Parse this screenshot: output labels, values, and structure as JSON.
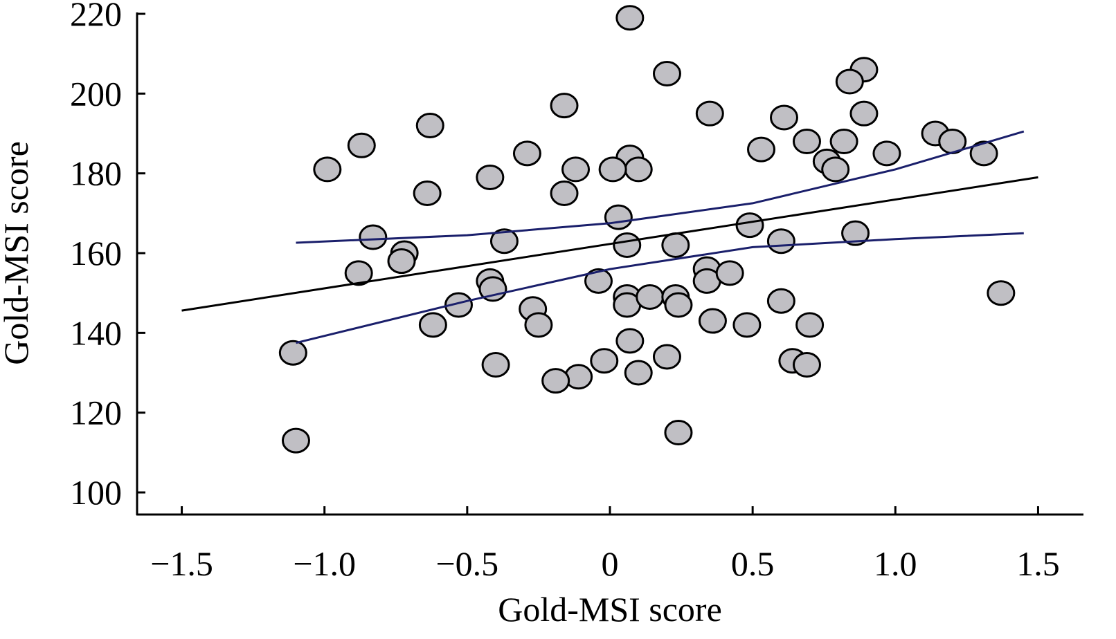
{
  "chart_data": {
    "type": "scatter",
    "title": "",
    "xlabel": "Gold-MSI score",
    "ylabel": "Gold-MSI score",
    "xlim": [
      -1.5,
      1.5
    ],
    "ylim": [
      100,
      220
    ],
    "xticks": [
      -1.5,
      -1.0,
      -0.5,
      0,
      0.5,
      1.0,
      1.5
    ],
    "xtick_labels": [
      "−1.5",
      "−1.0",
      "−0.5",
      "0",
      "0.5",
      "1.0",
      "1.5"
    ],
    "yticks": [
      100,
      120,
      140,
      160,
      180,
      200,
      220
    ],
    "ytick_labels": [
      "100",
      "120",
      "140",
      "160",
      "180",
      "200",
      "220"
    ],
    "grid": false,
    "colors": {
      "point_fill": "#c0bfc4",
      "point_stroke": "#000000",
      "fit": "#000000",
      "ci": "#1a1f6b"
    },
    "points": [
      [
        0.07,
        219
      ],
      [
        0.2,
        205
      ],
      [
        0.89,
        206
      ],
      [
        0.84,
        203
      ],
      [
        0.35,
        195
      ],
      [
        0.61,
        194
      ],
      [
        0.89,
        195
      ],
      [
        -0.16,
        197
      ],
      [
        -0.63,
        192
      ],
      [
        -0.87,
        187
      ],
      [
        -0.99,
        181
      ],
      [
        -0.29,
        185
      ],
      [
        0.53,
        186
      ],
      [
        0.69,
        188
      ],
      [
        0.82,
        188
      ],
      [
        0.97,
        185
      ],
      [
        1.14,
        190
      ],
      [
        1.2,
        188
      ],
      [
        1.31,
        185
      ],
      [
        0.07,
        184
      ],
      [
        0.1,
        181
      ],
      [
        -0.12,
        181
      ],
      [
        0.01,
        181
      ],
      [
        -0.42,
        179
      ],
      [
        -0.64,
        175
      ],
      [
        -0.16,
        175
      ],
      [
        0.76,
        183
      ],
      [
        0.79,
        181
      ],
      [
        -0.83,
        164
      ],
      [
        -0.88,
        155
      ],
      [
        -0.72,
        160
      ],
      [
        -0.73,
        158
      ],
      [
        -0.37,
        163
      ],
      [
        0.03,
        169
      ],
      [
        0.06,
        162
      ],
      [
        0.23,
        162
      ],
      [
        0.49,
        167
      ],
      [
        0.6,
        163
      ],
      [
        0.86,
        165
      ],
      [
        1.37,
        150
      ],
      [
        -0.42,
        153
      ],
      [
        -0.41,
        151
      ],
      [
        -0.53,
        147
      ],
      [
        -0.62,
        142
      ],
      [
        -0.27,
        146
      ],
      [
        -0.25,
        142
      ],
      [
        -0.04,
        153
      ],
      [
        0.06,
        149
      ],
      [
        0.06,
        147
      ],
      [
        0.14,
        149
      ],
      [
        0.23,
        149
      ],
      [
        0.24,
        147
      ],
      [
        0.34,
        156
      ],
      [
        0.34,
        153
      ],
      [
        0.42,
        155
      ],
      [
        0.36,
        143
      ],
      [
        0.48,
        142
      ],
      [
        0.6,
        148
      ],
      [
        0.7,
        142
      ],
      [
        0.07,
        138
      ],
      [
        -0.02,
        133
      ],
      [
        0.1,
        130
      ],
      [
        0.2,
        134
      ],
      [
        -0.11,
        129
      ],
      [
        -0.19,
        128
      ],
      [
        -0.4,
        132
      ],
      [
        0.64,
        133
      ],
      [
        0.69,
        132
      ],
      [
        -1.11,
        135
      ],
      [
        -1.1,
        113
      ],
      [
        0.24,
        115
      ]
    ],
    "fit_line": [
      [
        -1.5,
        145.6
      ],
      [
        1.5,
        179.0
      ]
    ],
    "ci_upper": [
      [
        -1.1,
        162.6
      ],
      [
        -0.5,
        164.5
      ],
      [
        0,
        167.5
      ],
      [
        0.5,
        172.5
      ],
      [
        1.0,
        181
      ],
      [
        1.45,
        190.5
      ]
    ],
    "ci_lower": [
      [
        -1.1,
        137.5
      ],
      [
        -0.5,
        148
      ],
      [
        0,
        156
      ],
      [
        0.5,
        161.5
      ],
      [
        1.0,
        163.5
      ],
      [
        1.45,
        165
      ]
    ]
  }
}
